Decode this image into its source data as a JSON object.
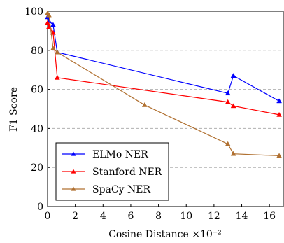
{
  "chart_data": {
    "type": "line",
    "xlabel": "Cosine Distance ×10⁻²",
    "ylabel": "F1 Score",
    "xlim": [
      0,
      17
    ],
    "ylim": [
      0,
      100
    ],
    "xticks": [
      "0",
      "2",
      "4",
      "6",
      "8",
      "10",
      "12",
      "14",
      "16"
    ],
    "yticks": [
      "0",
      "20",
      "40",
      "60",
      "80",
      "100"
    ],
    "grid": "horizontal dashed",
    "legend_position": "bottom-left",
    "series": [
      {
        "name": "ELMo NER",
        "color": "#0000ff",
        "marker": "triangle",
        "x": [
          0,
          0.1,
          0.4,
          0.7,
          13,
          13.4,
          16.7
        ],
        "y": [
          97,
          95,
          93,
          79,
          58,
          67,
          54
        ]
      },
      {
        "name": "Stanford NER",
        "color": "#ff0000",
        "marker": "triangle",
        "x": [
          0,
          0.1,
          0.4,
          0.7,
          13,
          13.4,
          16.7
        ],
        "y": [
          94,
          92,
          89,
          66,
          53.5,
          51.5,
          47
        ]
      },
      {
        "name": "SpaCy NER",
        "color": "#b07030",
        "marker": "triangle",
        "x": [
          0,
          0.1,
          0.4,
          0.7,
          7,
          13,
          13.4,
          16.7
        ],
        "y": [
          99,
          98,
          81,
          79,
          52,
          32,
          27,
          26
        ]
      }
    ]
  }
}
